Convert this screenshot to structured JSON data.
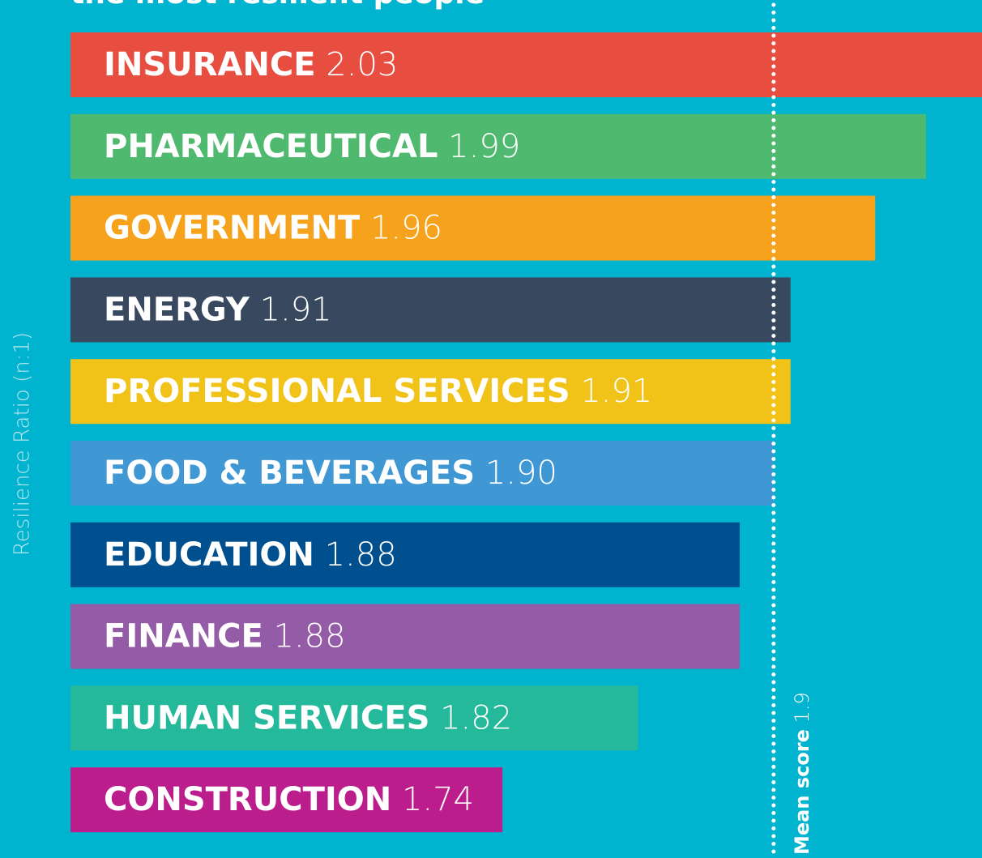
{
  "chart_data": {
    "type": "bar",
    "orientation": "horizontal",
    "title": "the most resilient people",
    "ylabel": "Resilience Ratio (n:1)",
    "categories": [
      "INSURANCE",
      "PHARMACEUTICAL",
      "GOVERNMENT",
      "ENERGY",
      "PROFESSIONAL SERVICES",
      "FOOD & BEVERAGES",
      "EDUCATION",
      "FINANCE",
      "HUMAN SERVICES",
      "CONSTRUCTION"
    ],
    "values": [
      2.03,
      1.99,
      1.96,
      1.91,
      1.91,
      1.9,
      1.88,
      1.88,
      1.82,
      1.74
    ],
    "value_labels": [
      "2.03",
      "1.99",
      "1.96",
      "1.91",
      "1.91",
      "1.90",
      "1.88",
      "1.88",
      "1.82",
      "1.74"
    ],
    "colors": [
      "#e84e40",
      "#4fba6f",
      "#f7a21c",
      "#37485f",
      "#f1c318",
      "#3f97d3",
      "#00508f",
      "#945ba6",
      "#25b99b",
      "#bc1d8c"
    ],
    "xlim": [
      1.485,
      2.023
    ],
    "mean": 1.9,
    "mean_label": "Mean score"
  }
}
